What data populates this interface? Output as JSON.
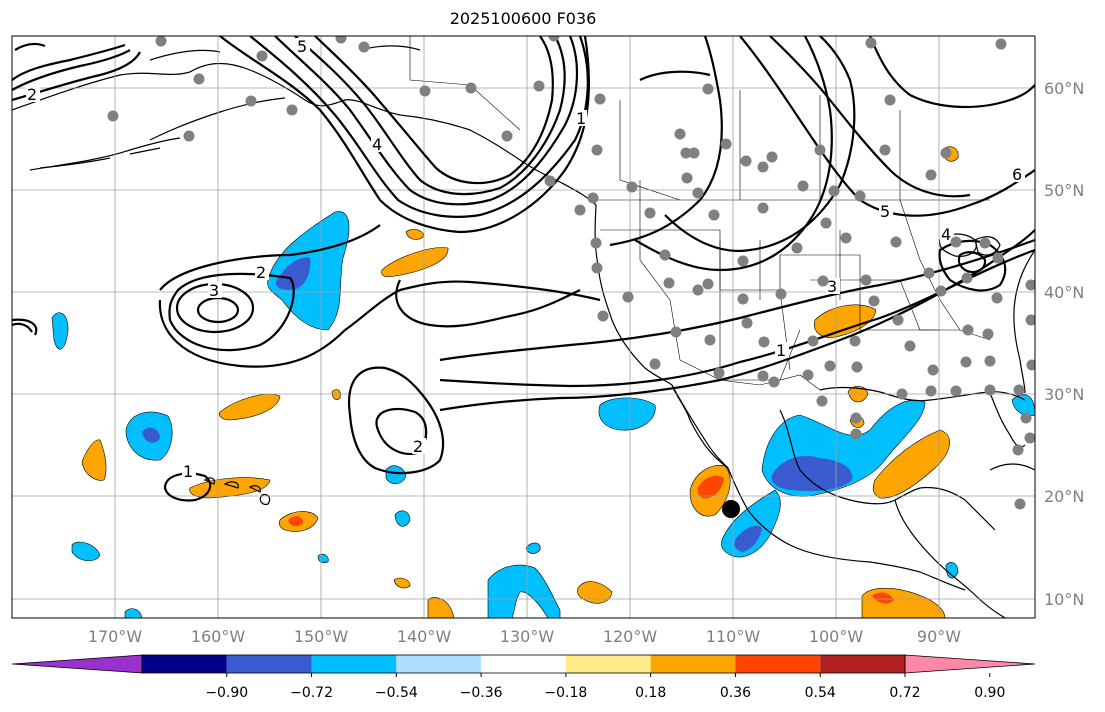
{
  "title": "2025100600 F036",
  "longitude_labels": [
    "170°W",
    "160°W",
    "150°W",
    "140°W",
    "130°W",
    "120°W",
    "110°W",
    "100°W",
    "90°W"
  ],
  "latitude_labels": [
    "60°N",
    "50°N",
    "40°N",
    "30°N",
    "20°N",
    "10°N"
  ],
  "contour_labels": [
    "5",
    "4",
    "3",
    "2",
    "1",
    "5",
    "6",
    "3",
    "2",
    "1",
    "1",
    "2",
    "4"
  ],
  "colorbar": {
    "colors": [
      "#9932CC",
      "#00008B",
      "#3A5BD0",
      "#00BFFF",
      "#ADDFFF",
      "#FFFFFF",
      "#FFEB8A",
      "#FFA500",
      "#FF4500",
      "#B22222",
      "#FF88AA"
    ],
    "tick_labels": [
      "−0.90",
      "−0.72",
      "−0.54",
      "−0.36",
      "−0.18",
      "0.18",
      "0.36",
      "0.54",
      "0.72",
      "0.90"
    ]
  },
  "colors": {
    "station_dots": "#808080",
    "marker": "#000000",
    "grid": "#a0a0a0"
  }
}
